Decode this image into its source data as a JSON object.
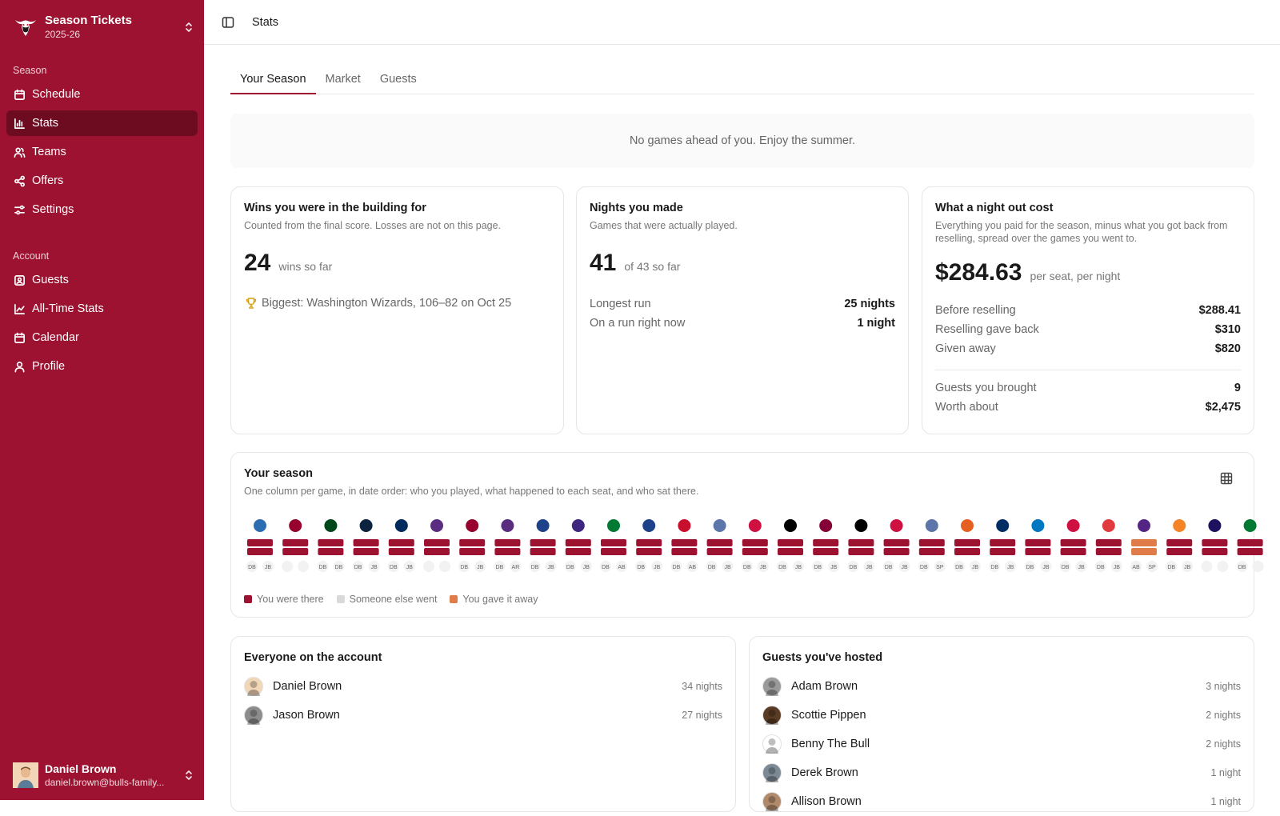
{
  "brand": {
    "title": "Season Tickets",
    "season": "2025-26"
  },
  "nav": {
    "season_label": "Season",
    "season_items": [
      {
        "label": "Schedule",
        "icon": "calendar-icon"
      },
      {
        "label": "Stats",
        "icon": "bar-chart-icon",
        "active": true
      },
      {
        "label": "Teams",
        "icon": "users-icon"
      },
      {
        "label": "Offers",
        "icon": "share-icon"
      },
      {
        "label": "Settings",
        "icon": "sliders-icon"
      }
    ],
    "account_label": "Account",
    "account_items": [
      {
        "label": "Guests",
        "icon": "contact-icon"
      },
      {
        "label": "All-Time Stats",
        "icon": "line-chart-icon"
      },
      {
        "label": "Calendar",
        "icon": "calendar-icon"
      },
      {
        "label": "Profile",
        "icon": "user-icon"
      }
    ]
  },
  "user": {
    "name": "Daniel Brown",
    "email": "daniel.brown@bulls-family..."
  },
  "topbar": {
    "title": "Stats"
  },
  "tabs": [
    "Your Season",
    "Market",
    "Guests"
  ],
  "banner": "No games ahead of you. Enjoy the summer.",
  "wins": {
    "title": "Wins you were in the building for",
    "subtitle": "Counted from the final score. Losses are not on this page.",
    "count": "24",
    "suffix": "wins so far",
    "biggest": "Biggest: Washington Wizards, 106–82 on Oct 25"
  },
  "nights": {
    "title": "Nights you made",
    "subtitle": "Games that were actually played.",
    "count": "41",
    "suffix": "of 43 so far",
    "rows": [
      {
        "label": "Longest run",
        "value": "25 nights"
      },
      {
        "label": "On a run right now",
        "value": "1 night"
      }
    ]
  },
  "cost": {
    "title": "What a night out cost",
    "subtitle": "Everything you paid for the season, minus what you got back from reselling, spread over the games you went to.",
    "amount": "$284.63",
    "suffix": "per seat, per night",
    "rows": [
      {
        "label": "Before reselling",
        "value": "$288.41"
      },
      {
        "label": "Reselling gave back",
        "value": "$310"
      },
      {
        "label": "Given away",
        "value": "$820"
      }
    ],
    "rows2": [
      {
        "label": "Guests you brought",
        "value": "9"
      },
      {
        "label": "Worth about",
        "value": "$2,475"
      }
    ]
  },
  "season": {
    "title": "Your season",
    "subtitle": "One column per game, in date order: who you played, what happened to each seat, and who sat there.",
    "colors": {
      "there": "#9d1230",
      "someone": "#d9d9d9",
      "gave": "#e07b4a"
    },
    "legend": [
      "You were there",
      "Someone else went",
      "You gave it away"
    ],
    "games": [
      {
        "team_color": "#2a6db0",
        "s1": "there",
        "s2": "there",
        "i1": "DB",
        "i2": "JB"
      },
      {
        "team_color": "#98002e",
        "s1": "there",
        "s2": "there",
        "i1": "",
        "i2": ""
      },
      {
        "team_color": "#00471b",
        "s1": "there",
        "s2": "there",
        "i1": "DB",
        "i2": "DB"
      },
      {
        "team_color": "#0c2340",
        "s1": "there",
        "s2": "there",
        "i1": "DB",
        "i2": "JB"
      },
      {
        "team_color": "#002b5c",
        "s1": "there",
        "s2": "there",
        "i1": "DB",
        "i2": "JB"
      },
      {
        "team_color": "#5a2d81",
        "s1": "there",
        "s2": "there",
        "i1": "",
        "i2": ""
      },
      {
        "team_color": "#98002e",
        "s1": "there",
        "s2": "there",
        "i1": "DB",
        "i2": "JB"
      },
      {
        "team_color": "#5a2d81",
        "s1": "there",
        "s2": "there",
        "i1": "DB",
        "i2": "AR"
      },
      {
        "team_color": "#1d428a",
        "s1": "there",
        "s2": "there",
        "i1": "DB",
        "i2": "JB"
      },
      {
        "team_color": "#3e2680",
        "s1": "there",
        "s2": "there",
        "i1": "DB",
        "i2": "JB"
      },
      {
        "team_color": "#007a33",
        "s1": "there",
        "s2": "there",
        "i1": "DB",
        "i2": "AB"
      },
      {
        "team_color": "#1d428a",
        "s1": "there",
        "s2": "there",
        "i1": "DB",
        "i2": "JB"
      },
      {
        "team_color": "#c8102e",
        "s1": "there",
        "s2": "there",
        "i1": "DB",
        "i2": "AB"
      },
      {
        "team_color": "#5d76a9",
        "s1": "there",
        "s2": "there",
        "i1": "DB",
        "i2": "JB"
      },
      {
        "team_color": "#ce1141",
        "s1": "there",
        "s2": "there",
        "i1": "DB",
        "i2": "JB"
      },
      {
        "team_color": "#000000",
        "s1": "there",
        "s2": "there",
        "i1": "DB",
        "i2": "JB"
      },
      {
        "team_color": "#860038",
        "s1": "there",
        "s2": "there",
        "i1": "DB",
        "i2": "JB"
      },
      {
        "team_color": "#000000",
        "s1": "there",
        "s2": "there",
        "i1": "DB",
        "i2": "JB"
      },
      {
        "team_color": "#ce1141",
        "s1": "there",
        "s2": "there",
        "i1": "DB",
        "i2": "JB"
      },
      {
        "team_color": "#5d76a9",
        "s1": "there",
        "s2": "there",
        "i1": "DB",
        "i2": "SP"
      },
      {
        "team_color": "#e56020",
        "s1": "there",
        "s2": "there",
        "i1": "DB",
        "i2": "JB"
      },
      {
        "team_color": "#002d62",
        "s1": "there",
        "s2": "there",
        "i1": "DB",
        "i2": "JB"
      },
      {
        "team_color": "#0077c0",
        "s1": "there",
        "s2": "there",
        "i1": "DB",
        "i2": "JB"
      },
      {
        "team_color": "#ce1141",
        "s1": "there",
        "s2": "there",
        "i1": "DB",
        "i2": "JB"
      },
      {
        "team_color": "#e03a3e",
        "s1": "there",
        "s2": "there",
        "i1": "DB",
        "i2": "JB"
      },
      {
        "team_color": "#552583",
        "s1": "gave",
        "s2": "gave",
        "i1": "AB",
        "i2": "SP"
      },
      {
        "team_color": "#f58426",
        "s1": "there",
        "s2": "there",
        "i1": "DB",
        "i2": "JB"
      },
      {
        "team_color": "#1d1160",
        "s1": "there",
        "s2": "there",
        "i1": "",
        "i2": ""
      },
      {
        "team_color": "#007a33",
        "s1": "there",
        "s2": "there",
        "i1": "DB",
        "i2": ""
      }
    ]
  },
  "account_people": {
    "title": "Everyone on the account",
    "people": [
      {
        "name": "Daniel Brown",
        "nights": "34 nights",
        "avatar_color": "#f2d6b8"
      },
      {
        "name": "Jason Brown",
        "nights": "27 nights",
        "avatar_color": "#8c8c8c"
      }
    ]
  },
  "guests": {
    "title": "Guests you've hosted",
    "people": [
      {
        "name": "Adam Brown",
        "nights": "3 nights",
        "avatar_color": "#9a9a9a"
      },
      {
        "name": "Scottie Pippen",
        "nights": "2 nights",
        "avatar_color": "#5a3b24"
      },
      {
        "name": "Benny The Bull",
        "nights": "2 nights",
        "avatar_color": "#ffffff"
      },
      {
        "name": "Derek Brown",
        "nights": "1 night",
        "avatar_color": "#7d8a96"
      },
      {
        "name": "Allison Brown",
        "nights": "1 night",
        "avatar_color": "#b08a6a"
      }
    ]
  }
}
